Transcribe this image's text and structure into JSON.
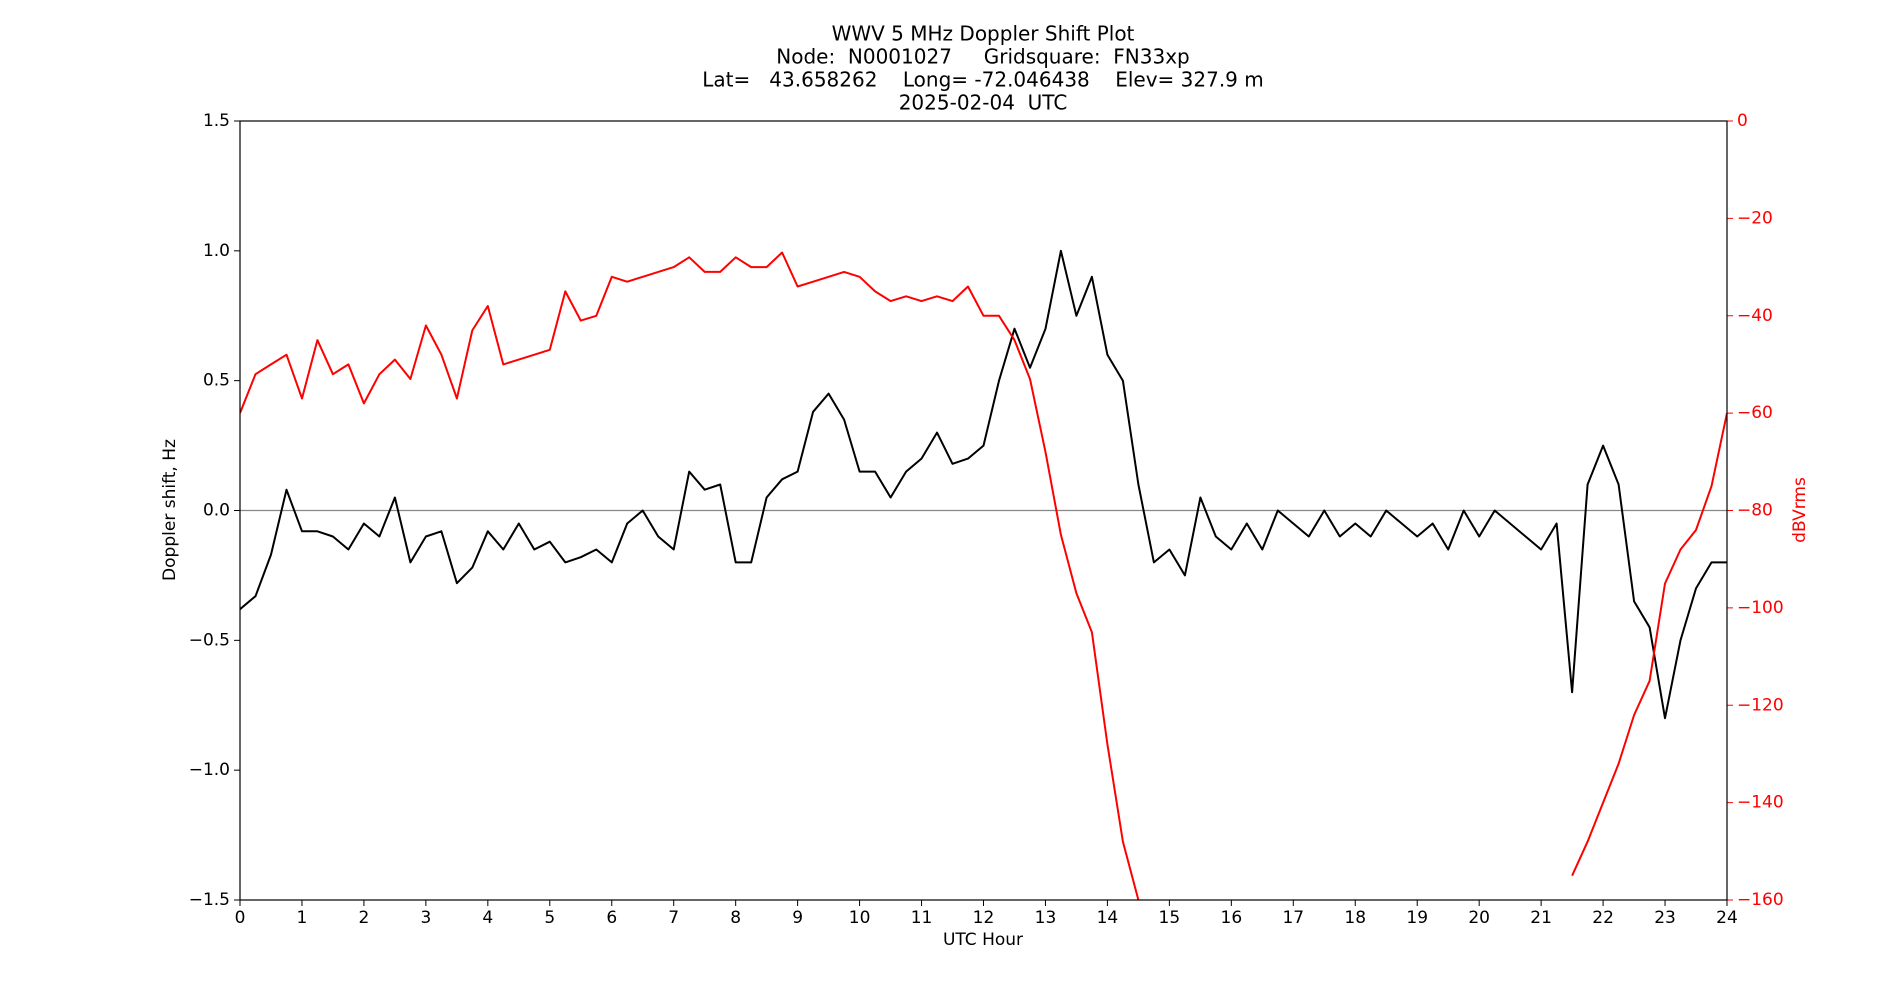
{
  "chart_data": {
    "type": "line",
    "title": [
      "WWV 5 MHz Doppler Shift Plot",
      "Node:  N0001027     Gridsquare:  FN33xp",
      "Lat=   43.658262    Long= -72.046438    Elev= 327.9 m",
      "2025-02-04  UTC"
    ],
    "xlabel": "UTC Hour",
    "ylabel": "Doppler shift, Hz",
    "y2label": "dBVrms",
    "x": [
      0,
      0.25,
      0.5,
      0.75,
      1,
      1.25,
      1.5,
      1.75,
      2,
      2.25,
      2.5,
      2.75,
      3,
      3.25,
      3.5,
      3.75,
      4,
      4.25,
      4.5,
      4.75,
      5,
      5.25,
      5.5,
      5.75,
      6,
      6.25,
      6.5,
      6.75,
      7,
      7.25,
      7.5,
      7.75,
      8,
      8.25,
      8.5,
      8.75,
      9,
      9.25,
      9.5,
      9.75,
      10,
      10.25,
      10.5,
      10.75,
      11,
      11.25,
      11.5,
      11.75,
      12,
      12.25,
      12.5,
      12.75,
      13,
      13.25,
      13.5,
      13.75,
      14,
      14.25,
      14.5,
      14.75,
      15,
      15.25,
      15.5,
      15.75,
      16,
      16.25,
      16.5,
      16.75,
      17,
      17.25,
      17.5,
      17.75,
      18,
      18.25,
      18.5,
      18.75,
      19,
      19.25,
      19.5,
      19.75,
      20,
      20.25,
      20.5,
      20.75,
      21,
      21.25,
      21.5,
      21.75,
      22,
      22.25,
      22.5,
      22.75,
      23,
      23.25,
      23.5,
      23.75,
      24
    ],
    "series": [
      {
        "color": "#000000",
        "values": [
          -0.38,
          -0.33,
          -0.17,
          0.08,
          -0.08,
          -0.08,
          -0.1,
          -0.15,
          -0.05,
          -0.1,
          0.05,
          -0.2,
          -0.1,
          -0.08,
          -0.28,
          -0.22,
          -0.08,
          -0.15,
          -0.05,
          -0.15,
          -0.12,
          -0.2,
          -0.18,
          -0.15,
          -0.2,
          -0.05,
          0,
          -0.1,
          -0.15,
          0.15,
          0.08,
          0.1,
          -0.2,
          -0.2,
          0.05,
          0.12,
          0.15,
          0.38,
          0.45,
          0.35,
          0.15,
          0.15,
          0.05,
          0.15,
          0.2,
          0.3,
          0.18,
          0.2,
          0.25,
          0.5,
          0.7,
          0.55,
          0.7,
          1.0,
          0.75,
          0.9,
          0.6,
          0.5,
          0.1,
          -0.2,
          -0.15,
          -0.25,
          0.05,
          -0.1,
          -0.15,
          -0.05,
          -0.15,
          0,
          -0.05,
          -0.1,
          0,
          -0.1,
          -0.05,
          -0.1,
          0,
          -0.05,
          -0.1,
          -0.05,
          -0.15,
          0,
          -0.1,
          0,
          -0.05,
          -0.1,
          -0.15,
          -0.05,
          -0.7,
          0.1,
          0.25,
          0.1,
          -0.35,
          -0.45,
          -0.8,
          -0.5,
          -0.3,
          -0.2,
          -0.2
        ]
      },
      {
        "color": "#ff0000",
        "axis": "y2",
        "values": [
          -60,
          -52,
          -50,
          -48,
          -57,
          -45,
          -52,
          -50,
          -58,
          -52,
          -49,
          -53,
          -42,
          -48,
          -57,
          -43,
          -38,
          -50,
          -49,
          -48,
          -47,
          -35,
          -41,
          -40,
          -32,
          -33,
          -32,
          -31,
          -30,
          -28,
          -31,
          -31,
          -28,
          -30,
          -30,
          -27,
          -34,
          -33,
          -32,
          -31,
          -32,
          -35,
          -37,
          -36,
          -37,
          -36,
          -37,
          -34,
          -40,
          -40,
          -45,
          -53,
          -68,
          -85,
          -97,
          -105,
          -128,
          -148,
          -160,
          null,
          null,
          null,
          null,
          null,
          null,
          null,
          null,
          null,
          null,
          null,
          null,
          null,
          null,
          null,
          null,
          null,
          null,
          null,
          null,
          null,
          null,
          null,
          null,
          null,
          null,
          null,
          -155,
          -148,
          -140,
          -132,
          -122,
          -115,
          -95,
          -88,
          -84,
          -75,
          -60
        ]
      }
    ],
    "xlim": [
      0,
      24
    ],
    "xticks": [
      0,
      1,
      2,
      3,
      4,
      5,
      6,
      7,
      8,
      9,
      10,
      11,
      12,
      13,
      14,
      15,
      16,
      17,
      18,
      19,
      20,
      21,
      22,
      23,
      24
    ],
    "ylim": [
      -1.5,
      1.5
    ],
    "yticks": [
      {
        "value": -1.5,
        "label": "−1.5"
      },
      {
        "value": -1,
        "label": "−1.0"
      },
      {
        "value": -0.5,
        "label": "−0.5"
      },
      {
        "value": 0,
        "label": "0.0"
      },
      {
        "value": 0.5,
        "label": "0.5"
      },
      {
        "value": 1,
        "label": "1.0"
      },
      {
        "value": 1.5,
        "label": "1.5"
      }
    ],
    "y2lim": [
      -160,
      0
    ],
    "y2ticks": [
      {
        "value": -160,
        "label": "−160"
      },
      {
        "value": -140,
        "label": "−140"
      },
      {
        "value": -120,
        "label": "−120"
      },
      {
        "value": -100,
        "label": "−100"
      },
      {
        "value": -80,
        "label": "−80"
      },
      {
        "value": -60,
        "label": "−60"
      },
      {
        "value": -40,
        "label": "−40"
      },
      {
        "value": -20,
        "label": "−20"
      },
      0
    ],
    "y2color": "#ff0000"
  }
}
